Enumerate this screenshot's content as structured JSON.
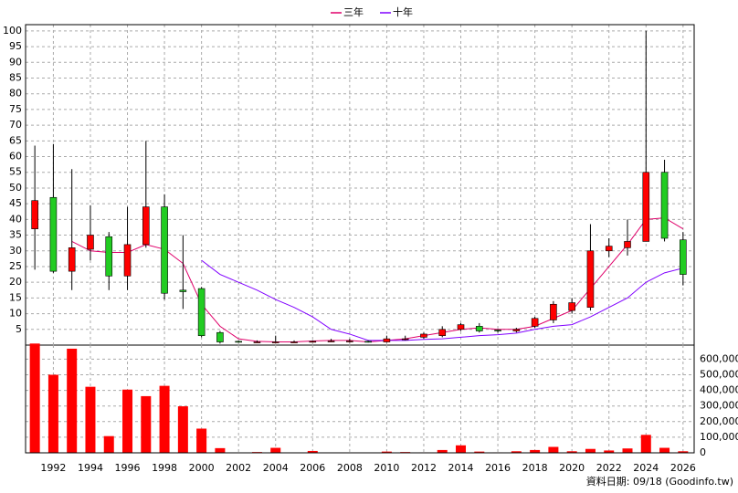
{
  "chart_data": [
    {
      "type": "candlestick",
      "x": [
        1991,
        1992,
        1993,
        1994,
        1995,
        1996,
        1997,
        1998,
        1999,
        2000,
        2001,
        2002,
        2003,
        2004,
        2005,
        2006,
        2007,
        2008,
        2009,
        2010,
        2011,
        2012,
        2013,
        2014,
        2015,
        2016,
        2017,
        2018,
        2019,
        2020,
        2021,
        2022,
        2023,
        2024,
        2025,
        2026
      ],
      "open": [
        37,
        47,
        23.5,
        30.5,
        34.5,
        22,
        32,
        44,
        17.5,
        18,
        4,
        1.2,
        1,
        1,
        1,
        1.2,
        1.3,
        1.3,
        1.2,
        1,
        1.8,
        2.5,
        3,
        5,
        6,
        4.8,
        4.5,
        6,
        8,
        11,
        12,
        30,
        31,
        33,
        55,
        33.5
      ],
      "close": [
        46,
        23.5,
        31,
        35,
        22,
        32,
        44,
        16.5,
        17,
        3,
        1,
        1,
        1,
        1,
        1,
        1.2,
        1.3,
        1.3,
        1,
        2,
        2,
        3.5,
        5,
        6.5,
        4.5,
        4.5,
        5,
        8.5,
        13,
        13.5,
        30,
        31.5,
        33,
        55,
        34,
        22.5
      ],
      "high": [
        63.5,
        64,
        56,
        44.5,
        36,
        44,
        65,
        48,
        35,
        18.5,
        4.5,
        1.5,
        1.5,
        3,
        1.5,
        1.5,
        2,
        2,
        1.5,
        3,
        3,
        4,
        6,
        7,
        7,
        5,
        5.5,
        9,
        14,
        15,
        38.5,
        34,
        40,
        100,
        59,
        36
      ],
      "low": [
        24,
        23,
        17.5,
        27,
        17.5,
        17.5,
        31,
        14.5,
        11.5,
        2.5,
        0.5,
        0.8,
        0.8,
        0.8,
        0.8,
        1,
        1,
        0.8,
        0.8,
        0.8,
        1.5,
        2,
        2.5,
        4.5,
        4,
        4,
        4,
        5.5,
        7,
        10,
        11,
        28,
        28.5,
        33,
        33,
        19
      ],
      "up_color": "#ff0000",
      "down_color": "#22cc22",
      "series": [
        {
          "name": "三年",
          "color": "#e0006a",
          "values": [
            null,
            null,
            33,
            30,
            29.5,
            29.5,
            32,
            30.5,
            26,
            13,
            6,
            2,
            1.2,
            1,
            1,
            1.3,
            1.5,
            1.5,
            1,
            1.5,
            2,
            3,
            4,
            5,
            5.5,
            5,
            5,
            6,
            8.5,
            11,
            18,
            25,
            32,
            40,
            40.5,
            37
          ]
        },
        {
          "name": "十年",
          "color": "#8000ff",
          "values": [
            null,
            null,
            null,
            null,
            null,
            null,
            null,
            null,
            null,
            27,
            22.5,
            20,
            17.5,
            14.5,
            12,
            9,
            5,
            3.5,
            1.5,
            1.5,
            1.5,
            1.8,
            2,
            2.5,
            3,
            3.3,
            3.8,
            5,
            6,
            6.5,
            9,
            12,
            15,
            20,
            23,
            24.5
          ]
        }
      ],
      "xlim": [
        1990.5,
        2026.6
      ],
      "ylim": [
        0,
        102
      ],
      "yticks": [
        5,
        10,
        15,
        20,
        25,
        30,
        35,
        40,
        45,
        50,
        55,
        60,
        65,
        70,
        75,
        80,
        85,
        90,
        95,
        100
      ],
      "grid": true
    },
    {
      "type": "bar",
      "x": [
        1991,
        1992,
        1993,
        1994,
        1995,
        1996,
        1997,
        1998,
        1999,
        2000,
        2001,
        2002,
        2003,
        2004,
        2005,
        2006,
        2007,
        2008,
        2009,
        2010,
        2011,
        2012,
        2013,
        2014,
        2015,
        2016,
        2017,
        2018,
        2019,
        2020,
        2021,
        2022,
        2023,
        2024,
        2025,
        2026
      ],
      "values": [
        700000,
        500000,
        667000,
        423000,
        107000,
        405000,
        363000,
        429000,
        298000,
        155000,
        30000,
        2000,
        5000,
        32000,
        2000,
        12000,
        2000,
        2000,
        2000,
        8000,
        5000,
        3000,
        18000,
        48000,
        8000,
        3000,
        10000,
        18000,
        38000,
        10000,
        25000,
        15000,
        28000,
        115000,
        32000,
        10000
      ],
      "color": "#ff0000",
      "xlim": [
        1990.5,
        2026.6
      ],
      "ylim": [
        0,
        690000
      ],
      "yticks": [
        0,
        {
          "value": 100000,
          "label": "100,000"
        },
        {
          "value": 200000,
          "label": "200,000"
        },
        {
          "value": 300000,
          "label": "300,000"
        },
        {
          "value": 400000,
          "label": "400,000"
        },
        {
          "value": 500000,
          "label": "500,000"
        },
        {
          "value": 600000,
          "label": "600,000"
        }
      ],
      "xticks": [
        1992,
        1994,
        1996,
        1998,
        2000,
        2002,
        2004,
        2006,
        2008,
        2010,
        2012,
        2014,
        2016,
        2018,
        2020,
        2022,
        2024,
        2026
      ],
      "grid": true,
      "note": "資料日期: 09/18 (Goodinfo.tw)"
    }
  ]
}
